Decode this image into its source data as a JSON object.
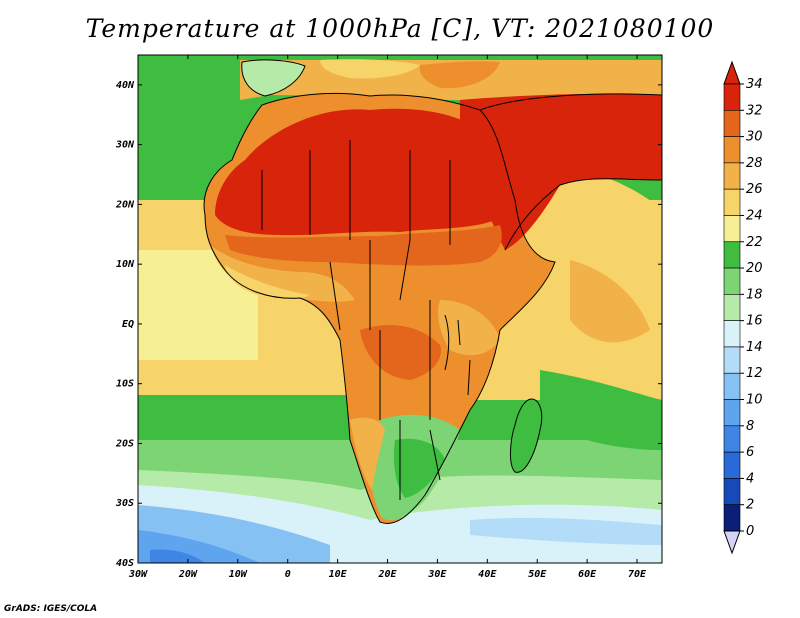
{
  "title": "Temperature at 1000hPa [C], VT: 2021080100",
  "credit": "GrADS: IGES/COLA",
  "map": {
    "lon_range": [
      -30,
      75
    ],
    "lat_range": [
      -40,
      45
    ],
    "lon_ticks": [
      "30W",
      "20W",
      "10W",
      "0",
      "10E",
      "20E",
      "30E",
      "40E",
      "50E",
      "60E",
      "70E"
    ],
    "lat_ticks": [
      "40N",
      "30N",
      "20N",
      "10N",
      "EQ",
      "10S",
      "20S",
      "30S",
      "40S"
    ]
  },
  "colorbar": {
    "levels": [
      "34",
      "32",
      "30",
      "28",
      "26",
      "24",
      "22",
      "20",
      "18",
      "16",
      "14",
      "12",
      "10",
      "8",
      "6",
      "4",
      "2",
      "0"
    ],
    "colors": [
      "#0b1f7a",
      "#1849b8",
      "#2a6ad8",
      "#3f86e4",
      "#5ea4ee",
      "#86c1f4",
      "#b3dcf8",
      "#d9f2fa",
      "#b6eaa9",
      "#7cd475",
      "#3fbd40",
      "#f6ef94",
      "#f6d46a",
      "#f2b24a",
      "#ec8f2c",
      "#e4651c",
      "#d8240b"
    ],
    "top_arrow_color": "#d8240b",
    "bottom_arrow_color": "#d6d4f6"
  },
  "legend": {
    "ocean_north": "#3fbd40",
    "ocean_tropical": "#f6d46a",
    "ocean_south": "#7cd475",
    "sahara": "#d8240b"
  }
}
